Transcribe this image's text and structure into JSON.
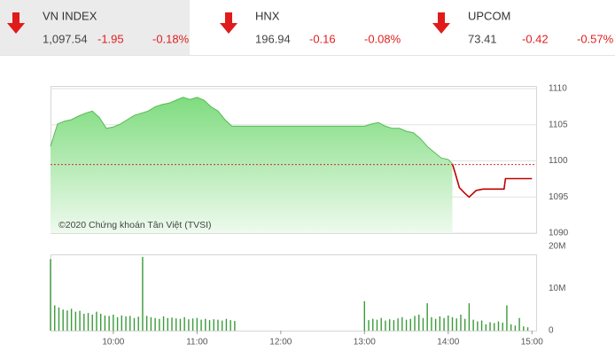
{
  "header": {
    "indices": [
      {
        "name": "VN INDEX",
        "value": "1,097.54",
        "change": "-1.95",
        "percent": "-0.18%"
      },
      {
        "name": "HNX",
        "value": "196.94",
        "change": "-0.16",
        "percent": "-0.08%"
      },
      {
        "name": "UPCOM",
        "value": "73.41",
        "change": "-0.42",
        "percent": "-0.57%"
      }
    ]
  },
  "chart_data": [
    {
      "type": "area",
      "annotation": "©2020 Chứng khoán Tân Việt (TVSI)",
      "x": [
        555,
        560,
        565,
        570,
        575,
        580,
        585,
        590,
        595,
        600,
        605,
        610,
        615,
        620,
        625,
        630,
        635,
        640,
        645,
        650,
        655,
        660,
        665,
        670,
        675,
        680,
        685,
        690,
        780,
        785,
        790,
        795,
        800,
        805,
        810,
        815,
        820,
        825,
        830,
        835,
        840,
        843,
        845,
        848,
        852,
        855,
        860,
        865,
        870,
        880,
        881,
        890,
        900
      ],
      "series": [
        {
          "color": "#55bb55",
          "values": [
            1102,
            1105.1,
            1105.5,
            1105.7,
            1106.2,
            1106.6,
            1106.9,
            1106,
            1104.5,
            1104.7,
            1105.1,
            1105.7,
            1106.3,
            1106.6,
            1106.9,
            1107.5,
            1107.8,
            1108,
            1108.4,
            1108.8,
            1108.5,
            1108.8,
            1108.4,
            1107.5,
            1106.9,
            1105.7,
            1104.8,
            1104.8,
            1104.8,
            1105.1,
            1105.3,
            1104.8,
            1104.5,
            1104.5,
            1104.1,
            1103.9,
            1103.1,
            1102,
            1101.2,
            1100.4,
            1100.2,
            1099.6,
            null,
            null,
            null,
            null,
            null,
            null,
            null,
            null,
            null,
            null,
            null
          ]
        },
        {
          "color": "#c00000",
          "values": [
            null,
            null,
            null,
            null,
            null,
            null,
            null,
            null,
            null,
            null,
            null,
            null,
            null,
            null,
            null,
            null,
            null,
            null,
            null,
            null,
            null,
            null,
            null,
            null,
            null,
            null,
            null,
            null,
            null,
            null,
            null,
            null,
            null,
            null,
            null,
            null,
            null,
            null,
            null,
            null,
            null,
            1099.6,
            1098.3,
            1096.3,
            1095.5,
            1095,
            1095.9,
            1096.1,
            1096.1,
            1096.1,
            1097.54,
            1097.54,
            1097.54
          ]
        }
      ],
      "reference_line": 1099.49,
      "reference_color": "#d03030",
      "xlim": [
        555,
        903
      ],
      "ylim": [
        1090,
        1110
      ],
      "yticks": [
        1090,
        1095,
        1100,
        1105,
        1110
      ],
      "grid": true
    },
    {
      "type": "bar",
      "x": [
        555,
        558,
        561,
        564,
        567,
        570,
        573,
        576,
        579,
        582,
        585,
        588,
        591,
        594,
        597,
        600,
        603,
        606,
        609,
        612,
        615,
        618,
        621,
        624,
        627,
        630,
        633,
        636,
        639,
        642,
        645,
        648,
        651,
        654,
        657,
        660,
        663,
        666,
        669,
        672,
        675,
        678,
        681,
        684,
        687,
        780,
        783,
        786,
        789,
        792,
        795,
        798,
        801,
        804,
        807,
        810,
        813,
        816,
        819,
        822,
        825,
        828,
        831,
        834,
        837,
        840,
        843,
        846,
        849,
        852,
        855,
        858,
        861,
        864,
        867,
        870,
        873,
        876,
        879,
        882,
        885,
        888,
        891,
        894,
        897
      ],
      "values": [
        17000000,
        6000000,
        5500000,
        5000000,
        4800000,
        5200000,
        4500000,
        4700000,
        4000000,
        4200000,
        3800000,
        4500000,
        4000000,
        3600000,
        3500000,
        3800000,
        3200000,
        3600000,
        3400000,
        3500000,
        3000000,
        3300000,
        17500000,
        3500000,
        3200000,
        3000000,
        2800000,
        3400000,
        3000000,
        3100000,
        2900000,
        2800000,
        3200000,
        2700000,
        2900000,
        3000000,
        2600000,
        2800000,
        2500000,
        2700000,
        2600000,
        2400000,
        2800000,
        2500000,
        2300000,
        7000000,
        2500000,
        2800000,
        2600000,
        3000000,
        2400000,
        2700000,
        2500000,
        2900000,
        3200000,
        2600000,
        2800000,
        3500000,
        3800000,
        3000000,
        6500000,
        3200000,
        2800000,
        3400000,
        3000000,
        3600000,
        3200000,
        2900000,
        3800000,
        2800000,
        6500000,
        2600000,
        2200000,
        2400000,
        1500000,
        2000000,
        1800000,
        2200000,
        1900000,
        6000000,
        1500000,
        1200000,
        3000000,
        1000000,
        800000
      ],
      "color": "#3a9a3a",
      "xlim": [
        555,
        903
      ],
      "xticks": [
        {
          "value": 600,
          "label": "10:00"
        },
        {
          "value": 660,
          "label": "11:00"
        },
        {
          "value": 720,
          "label": "12:00"
        },
        {
          "value": 780,
          "label": "13:00"
        },
        {
          "value": 840,
          "label": "14:00"
        },
        {
          "value": 900,
          "label": "15:00"
        }
      ],
      "ylim": [
        0,
        20000000
      ],
      "yticks": [
        0,
        {
          "value": 10000000,
          "label": "10M"
        },
        {
          "value": 20000000,
          "label": "20M"
        }
      ],
      "grid": false
    }
  ]
}
